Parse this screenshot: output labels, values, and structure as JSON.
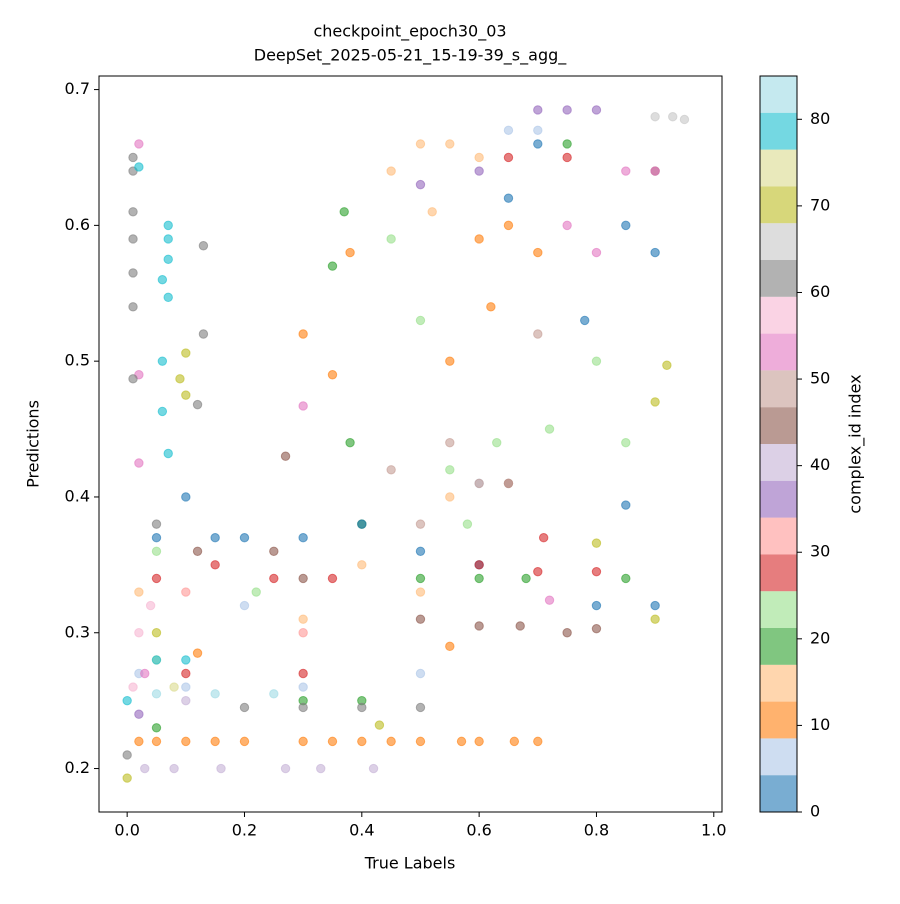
{
  "chart_data": {
    "type": "scatter",
    "title": "checkpoint_epoch30_03",
    "subtitle": "DeepSet_2025-05-21_15-19-39_s_agg_",
    "xlabel": "True Labels",
    "ylabel": "Predictions",
    "colorbar_label": "complex_id index",
    "xlim": [
      -0.048,
      1.014
    ],
    "ylim": [
      0.168,
      0.71
    ],
    "xticks": [
      {
        "value": 0,
        "label": "0.0"
      },
      0.2,
      0.4,
      0.6,
      0.8,
      {
        "value": 1,
        "label": "1.0"
      }
    ],
    "yticks": [
      0.2,
      0.3,
      0.4,
      0.5,
      0.6,
      0.7
    ],
    "clim": [
      0,
      85
    ],
    "cticks": [
      0,
      10,
      20,
      30,
      40,
      50,
      60,
      70,
      80
    ],
    "alpha": 0.6,
    "colormap": [
      "#1f77b4",
      "#aec7e8",
      "#ff7f0e",
      "#ffbb78",
      "#2ca02c",
      "#98df8a",
      "#d62728",
      "#ff9896",
      "#9467bd",
      "#c5b0d5",
      "#8c564b",
      "#c49c94",
      "#e377c2",
      "#f7b6d2",
      "#7f7f7f",
      "#c7c7c7",
      "#bcbd22",
      "#dbdb8d",
      "#17becf",
      "#9edae5"
    ],
    "x": [
      0.02,
      0.05,
      0.1,
      0.15,
      0.2,
      0.3,
      0.35,
      0.4,
      0.45,
      0.5,
      0.57,
      0.6,
      0.66,
      0.7,
      0.3,
      0.35,
      0.38,
      0.6,
      0.65,
      0.7,
      0.55,
      0.62,
      0.55,
      0.12,
      0.03,
      0.08,
      0.16,
      0.27,
      0.33,
      0.42,
      0.1,
      0.37,
      0.35,
      0.38,
      0.4,
      0.5,
      0.6,
      0.68,
      0.3,
      0.4,
      0.05,
      0.85,
      0.75,
      0.45,
      0.5,
      0.55,
      0.63,
      0.72,
      0.8,
      0.85,
      0.58,
      0.22,
      0.05,
      0.05,
      0.1,
      0.15,
      0.2,
      0.3,
      0.4,
      0.5,
      0.6,
      0.8,
      0.9,
      0.78,
      0.85,
      0.9,
      0.65,
      0.7,
      0.85,
      0.02,
      0.1,
      0.3,
      0.5,
      0.6,
      0.65,
      0.7,
      0.2,
      0.5,
      0.55,
      0.6,
      0.45,
      0.52,
      0.4,
      0.5,
      0.3,
      0.55,
      0.02,
      0.05,
      0.15,
      0.25,
      0.35,
      0.7,
      0.71,
      0.8,
      0.6,
      0.1,
      0.3,
      0.65,
      0.75,
      0.1,
      0.3,
      0.7,
      0.75,
      0.8,
      0.6,
      0.5,
      0.02,
      0.12,
      0.25,
      0.3,
      0.27,
      0.5,
      0.6,
      0.67,
      0.75,
      0.8,
      0.65,
      0.9,
      0.45,
      0.55,
      0.6,
      0.65,
      0.7,
      0.5,
      0.02,
      0.02,
      0.02,
      0.3,
      0.75,
      0.8,
      0.85,
      0.9,
      0.72,
      0.03,
      0.02,
      0.04,
      0.01,
      0.01,
      0.01,
      0.01,
      0.01,
      0.01,
      0.01,
      0.01,
      0.13,
      0.13,
      0.12,
      0.05,
      0.2,
      0.3,
      0.4,
      0.5,
      0,
      0.9,
      0.93,
      0.95,
      0.1,
      0.09,
      0.1,
      0.9,
      0.92,
      0.43,
      0,
      0.05,
      0.8,
      0.9,
      0.05,
      0.08,
      0.02,
      0.07,
      0.07,
      0.07,
      0.06,
      0.07,
      0.06,
      0.06,
      0.07,
      0.05,
      0.1,
      0,
      0.05,
      0.15,
      0.25
    ],
    "y": [
      0.22,
      0.22,
      0.22,
      0.22,
      0.22,
      0.22,
      0.22,
      0.22,
      0.22,
      0.22,
      0.22,
      0.22,
      0.22,
      0.22,
      0.52,
      0.49,
      0.58,
      0.59,
      0.6,
      0.58,
      0.5,
      0.54,
      0.29,
      0.285,
      0.2,
      0.2,
      0.2,
      0.2,
      0.2,
      0.2,
      0.25,
      0.61,
      0.57,
      0.44,
      0.38,
      0.34,
      0.34,
      0.34,
      0.25,
      0.25,
      0.23,
      0.34,
      0.66,
      0.59,
      0.53,
      0.42,
      0.44,
      0.45,
      0.5,
      0.44,
      0.38,
      0.33,
      0.36,
      0.37,
      0.4,
      0.37,
      0.37,
      0.37,
      0.38,
      0.36,
      0.35,
      0.32,
      0.32,
      0.53,
      0.6,
      0.58,
      0.62,
      0.66,
      0.394,
      0.27,
      0.26,
      0.26,
      0.27,
      0.41,
      0.67,
      0.67,
      0.32,
      0.66,
      0.66,
      0.65,
      0.64,
      0.61,
      0.35,
      0.33,
      0.31,
      0.4,
      0.33,
      0.34,
      0.35,
      0.34,
      0.34,
      0.345,
      0.37,
      0.345,
      0.35,
      0.27,
      0.27,
      0.65,
      0.65,
      0.33,
      0.3,
      0.685,
      0.685,
      0.685,
      0.64,
      0.63,
      0.24,
      0.36,
      0.36,
      0.34,
      0.43,
      0.31,
      0.305,
      0.305,
      0.3,
      0.303,
      0.41,
      0.64,
      0.42,
      0.44,
      0.41,
      0.41,
      0.52,
      0.38,
      0.66,
      0.49,
      0.425,
      0.467,
      0.6,
      0.58,
      0.64,
      0.64,
      0.324,
      0.27,
      0.3,
      0.32,
      0.26,
      0.65,
      0.64,
      0.61,
      0.59,
      0.565,
      0.54,
      0.487,
      0.585,
      0.52,
      0.468,
      0.38,
      0.245,
      0.245,
      0.245,
      0.245,
      0.21,
      0.68,
      0.68,
      0.678,
      0.506,
      0.487,
      0.475,
      0.47,
      0.497,
      0.232,
      0.193,
      0.3,
      0.366,
      0.31,
      0.28,
      0.26,
      0.643,
      0.6,
      0.59,
      0.575,
      0.56,
      0.547,
      0.5,
      0.463,
      0.432,
      0.28,
      0.28,
      0.25,
      0.255,
      0.255,
      0.255
    ],
    "c": [
      10,
      10,
      10,
      10,
      10,
      10,
      10,
      10,
      10,
      10,
      10,
      10,
      10,
      10,
      10,
      10,
      10,
      10,
      10,
      10,
      10,
      10,
      10,
      10,
      40,
      40,
      40,
      40,
      40,
      40,
      40,
      19,
      19,
      19,
      19,
      19,
      19,
      19,
      19,
      19,
      19,
      19,
      19,
      23,
      23,
      23,
      23,
      23,
      23,
      23,
      23,
      23,
      23,
      2,
      2,
      2,
      2,
      2,
      2,
      2,
      2,
      2,
      2,
      2,
      2,
      2,
      2,
      2,
      2,
      6,
      6,
      6,
      6,
      6,
      6,
      6,
      6,
      14,
      14,
      14,
      14,
      14,
      14,
      14,
      14,
      14,
      14,
      27,
      27,
      27,
      27,
      27,
      27,
      27,
      27,
      27,
      27,
      27,
      27,
      32,
      32,
      36,
      36,
      36,
      36,
      36,
      36,
      45,
      45,
      45,
      45,
      45,
      45,
      45,
      45,
      45,
      45,
      45,
      49,
      49,
      49,
      49,
      49,
      49,
      53,
      53,
      53,
      53,
      53,
      53,
      53,
      53,
      53,
      53,
      57,
      57,
      57,
      61,
      61,
      61,
      61,
      61,
      61,
      61,
      61,
      61,
      61,
      61,
      61,
      61,
      61,
      61,
      61,
      66,
      66,
      66,
      70,
      70,
      70,
      70,
      70,
      70,
      70,
      70,
      70,
      70,
      74,
      74,
      79,
      79,
      79,
      79,
      79,
      79,
      79,
      79,
      79,
      79,
      79,
      79,
      83,
      83,
      83
    ]
  }
}
